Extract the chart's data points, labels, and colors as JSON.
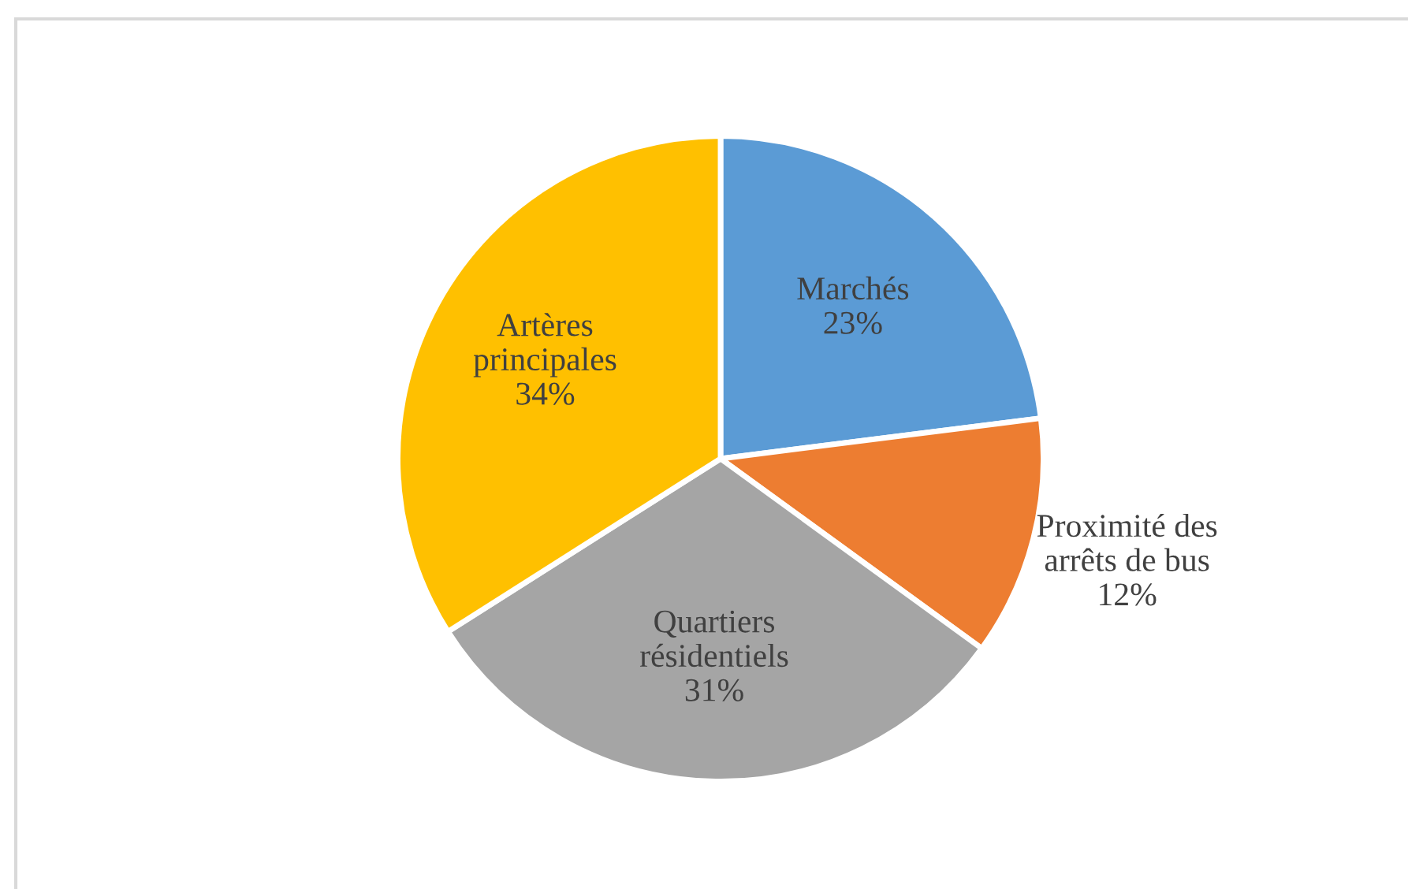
{
  "chart_data": {
    "type": "pie",
    "categories": [
      "Marchés",
      "Proximité des arrêts de bus",
      "Quartiers résidentiels",
      "Artères principales"
    ],
    "value_labels": [
      "23%",
      "12%",
      "31%",
      "34%"
    ],
    "values": [
      23,
      12,
      31,
      34
    ],
    "colors": [
      "#5b9bd5",
      "#ed7d31",
      "#a5a5a5",
      "#ffc000"
    ]
  }
}
